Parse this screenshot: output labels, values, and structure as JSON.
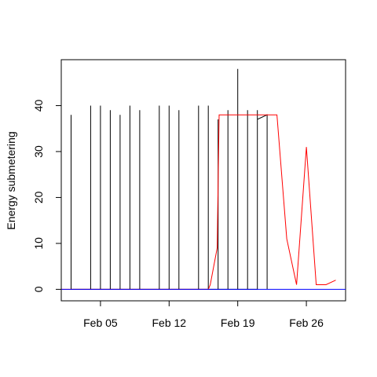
{
  "chart_data": {
    "type": "line",
    "title": "",
    "xlabel": "",
    "ylabel": "Energy submetering",
    "x_ticks": [
      {
        "label": "Feb 05",
        "day": 5
      },
      {
        "label": "Feb 12",
        "day": 12
      },
      {
        "label": "Feb 19",
        "day": 19
      },
      {
        "label": "Feb 26",
        "day": 26
      }
    ],
    "y_ticks": [
      0,
      10,
      20,
      30,
      40
    ],
    "xlim_days": [
      1,
      30
    ],
    "ylim": [
      -2.5,
      50
    ],
    "legend": "none",
    "grid": false,
    "series": [
      {
        "color": "#000000",
        "points": [
          [
            2.0,
            0
          ],
          [
            2.0,
            38
          ],
          [
            2.0,
            0
          ],
          [
            4.0,
            0
          ],
          [
            4.0,
            40
          ],
          [
            4.0,
            0
          ],
          [
            5.0,
            0
          ],
          [
            5.0,
            40
          ],
          [
            5.0,
            0
          ],
          [
            6.0,
            0
          ],
          [
            6.0,
            39
          ],
          [
            6.0,
            0
          ],
          [
            7.0,
            0
          ],
          [
            7.0,
            38
          ],
          [
            7.0,
            0
          ],
          [
            8.0,
            0
          ],
          [
            8.0,
            40
          ],
          [
            8.0,
            0
          ],
          [
            9.0,
            0
          ],
          [
            9.0,
            39
          ],
          [
            9.0,
            0
          ],
          [
            11.0,
            0
          ],
          [
            11.0,
            40
          ],
          [
            11.0,
            0
          ],
          [
            12.0,
            0
          ],
          [
            12.0,
            40
          ],
          [
            12.0,
            0
          ],
          [
            13.0,
            0
          ],
          [
            13.0,
            39
          ],
          [
            13.0,
            0
          ],
          [
            15.0,
            0
          ],
          [
            15.0,
            40
          ],
          [
            15.0,
            0
          ],
          [
            16.0,
            0
          ],
          [
            16.0,
            40
          ],
          [
            16.0,
            0
          ],
          [
            17.0,
            0
          ],
          [
            17.0,
            37
          ],
          [
            17.0,
            0
          ],
          [
            18.0,
            0
          ],
          [
            18.0,
            39
          ],
          [
            18.0,
            0
          ],
          [
            19.0,
            0
          ],
          [
            19.0,
            48
          ],
          [
            19.0,
            0
          ],
          [
            20.0,
            0
          ],
          [
            20.0,
            39
          ],
          [
            20.0,
            0
          ],
          [
            21.0,
            0
          ],
          [
            21.0,
            39
          ],
          [
            21.0,
            37
          ],
          [
            22.0,
            38
          ],
          [
            22.0,
            0
          ]
        ]
      },
      {
        "color": "#ff0000",
        "points": [
          [
            1,
            0
          ],
          [
            2,
            0
          ],
          [
            3,
            0
          ],
          [
            4,
            0
          ],
          [
            5,
            0
          ],
          [
            6,
            0
          ],
          [
            7,
            0
          ],
          [
            8,
            0
          ],
          [
            9,
            0
          ],
          [
            10,
            0
          ],
          [
            11,
            0
          ],
          [
            12,
            0
          ],
          [
            13,
            0
          ],
          [
            14,
            0
          ],
          [
            15,
            0
          ],
          [
            16,
            0
          ],
          [
            16.2,
            1
          ],
          [
            16.9,
            9
          ],
          [
            17.1,
            38
          ],
          [
            18,
            38
          ],
          [
            19,
            38
          ],
          [
            20,
            38
          ],
          [
            21,
            38
          ],
          [
            22,
            38
          ],
          [
            23,
            38
          ],
          [
            24,
            11
          ],
          [
            25,
            1
          ],
          [
            26,
            31
          ],
          [
            27,
            1
          ],
          [
            28,
            1
          ],
          [
            29,
            2
          ]
        ]
      },
      {
        "color": "#0000ff",
        "points": [
          [
            1,
            0
          ],
          [
            30,
            0
          ]
        ]
      }
    ]
  }
}
